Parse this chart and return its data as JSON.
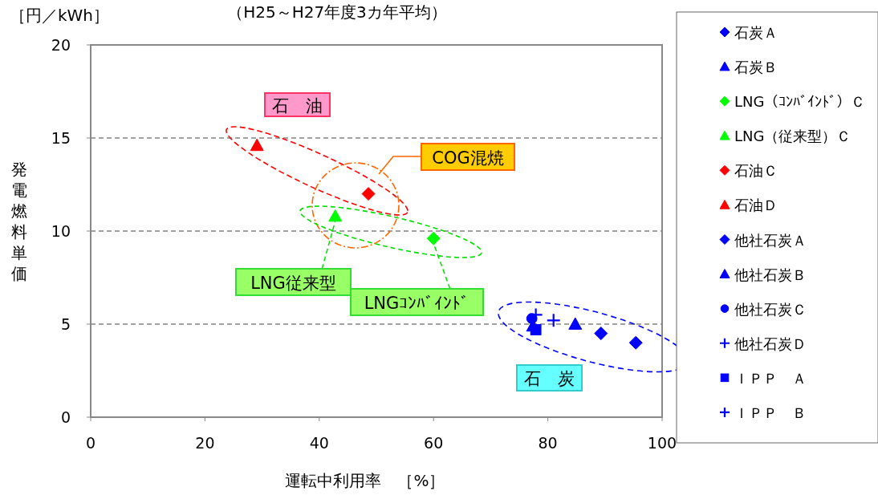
{
  "chart_data": {
    "type": "scatter",
    "subtitle": "（H25～H27年度3カ年平均）",
    "xlabel": "運転中利用率　［%］",
    "ylabel": "発電燃料単価",
    "annotations": [
      "［円／kWh］",
      "石　油",
      "COG混焼",
      {
        "text": "LNG従来型",
        "x": 42.8,
        "y": 10.8
      },
      {
        "text": "LNGｺﾝﾊﾞｲﾝﾄﾞ",
        "x": 60.0,
        "y": 9.6
      },
      "石　炭"
    ],
    "xlim": [
      0,
      100
    ],
    "xticks": [
      0,
      20,
      40,
      60,
      80,
      100
    ],
    "ylim": [
      0,
      20
    ],
    "yticks": [
      0,
      5,
      10,
      15,
      20
    ],
    "grid": "y",
    "legend": "right",
    "series": [
      {
        "name": "石炭Ａ",
        "color": "#0000ff",
        "marker": "diamond",
        "x": [
          95.4
        ],
        "values": [
          4.0
        ]
      },
      {
        "name": "石炭Ｂ",
        "color": "#0000ff",
        "marker": "triangle",
        "x": [
          84.8
        ],
        "values": [
          5.0
        ]
      },
      {
        "name": "LNG（ｺﾝﾊﾞｲﾝﾄﾞ）Ｃ",
        "color": "#00ff00",
        "marker": "diamond",
        "x": [
          60.0
        ],
        "values": [
          9.6
        ]
      },
      {
        "name": "LNG（従来型）Ｃ",
        "color": "#00ff00",
        "marker": "triangle",
        "x": [
          42.8
        ],
        "values": [
          10.8
        ]
      },
      {
        "name": "石油Ｃ",
        "color": "#ff0000",
        "marker": "diamond",
        "x": [
          48.6
        ],
        "values": [
          12.0
        ]
      },
      {
        "name": "石油Ｄ",
        "color": "#ff0000",
        "marker": "triangle",
        "x": [
          29.1
        ],
        "values": [
          14.6
        ]
      },
      {
        "name": "他社石炭Ａ",
        "color": "#0000ff",
        "marker": "diamond",
        "x": [
          89.3
        ],
        "values": [
          4.5
        ]
      },
      {
        "name": "他社石炭Ｂ",
        "color": "#0000ff",
        "marker": "triangle",
        "x": [
          77.4
        ],
        "values": [
          4.9
        ]
      },
      {
        "name": "他社石炭Ｃ",
        "color": "#0000ff",
        "marker": "circle",
        "x": [
          77.2
        ],
        "values": [
          5.3
        ]
      },
      {
        "name": "他社石炭Ｄ",
        "color": "#0000ff",
        "marker": "cross",
        "x": [
          77.9
        ],
        "values": [
          5.5
        ]
      },
      {
        "name": "ＩＰＰ　Ａ",
        "color": "#0000ff",
        "marker": "square",
        "x": [
          77.9
        ],
        "values": [
          4.7
        ]
      },
      {
        "name": "ＩＰＰ　Ｂ",
        "color": "#0000ff",
        "marker": "cross",
        "x": [
          81.0
        ],
        "values": [
          5.2
        ]
      }
    ]
  }
}
